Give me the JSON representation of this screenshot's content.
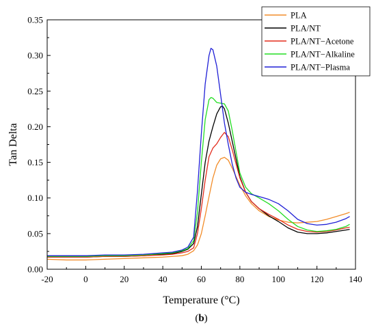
{
  "chart_data": {
    "type": "line",
    "xlabel": "Temperature (°C)",
    "ylabel": "Tan Delta",
    "caption_prefix": "(",
    "caption_bold": "b",
    "caption_suffix": ")",
    "xlim": [
      -20,
      140
    ],
    "ylim": [
      0,
      0.35
    ],
    "xticks": [
      -20,
      0,
      20,
      40,
      60,
      80,
      100,
      120,
      140
    ],
    "yticks": [
      0.0,
      0.05,
      0.1,
      0.15,
      0.2,
      0.25,
      0.3,
      0.35
    ],
    "xtick_labels": [
      "-20",
      "0",
      "20",
      "40",
      "60",
      "80",
      "100",
      "120",
      "140"
    ],
    "ytick_labels": [
      "0.00",
      "0.05",
      "0.10",
      "0.15",
      "0.20",
      "0.25",
      "0.30",
      "0.35"
    ],
    "grid": false,
    "legend_position": "top-right",
    "series": [
      {
        "name": "PLA",
        "color": "#f28c28",
        "points": [
          [
            -20,
            0.014
          ],
          [
            -10,
            0.013
          ],
          [
            0,
            0.013
          ],
          [
            10,
            0.014
          ],
          [
            20,
            0.015
          ],
          [
            30,
            0.016
          ],
          [
            40,
            0.017
          ],
          [
            45,
            0.018
          ],
          [
            50,
            0.019
          ],
          [
            53,
            0.021
          ],
          [
            56,
            0.026
          ],
          [
            58,
            0.034
          ],
          [
            60,
            0.05
          ],
          [
            62,
            0.075
          ],
          [
            64,
            0.102
          ],
          [
            66,
            0.128
          ],
          [
            68,
            0.146
          ],
          [
            70,
            0.155
          ],
          [
            72,
            0.157
          ],
          [
            74,
            0.153
          ],
          [
            76,
            0.142
          ],
          [
            78,
            0.13
          ],
          [
            80,
            0.118
          ],
          [
            83,
            0.103
          ],
          [
            86,
            0.092
          ],
          [
            90,
            0.082
          ],
          [
            95,
            0.074
          ],
          [
            100,
            0.069
          ],
          [
            105,
            0.066
          ],
          [
            110,
            0.065
          ],
          [
            115,
            0.066
          ],
          [
            120,
            0.067
          ],
          [
            125,
            0.07
          ],
          [
            130,
            0.074
          ],
          [
            135,
            0.078
          ],
          [
            137,
            0.08
          ]
        ]
      },
      {
        "name": "PLA/NT",
        "color": "#000000",
        "points": [
          [
            -20,
            0.017
          ],
          [
            -10,
            0.017
          ],
          [
            0,
            0.017
          ],
          [
            10,
            0.018
          ],
          [
            20,
            0.018
          ],
          [
            30,
            0.019
          ],
          [
            40,
            0.021
          ],
          [
            45,
            0.022
          ],
          [
            50,
            0.025
          ],
          [
            53,
            0.028
          ],
          [
            56,
            0.036
          ],
          [
            58,
            0.06
          ],
          [
            60,
            0.105
          ],
          [
            62,
            0.15
          ],
          [
            64,
            0.18
          ],
          [
            66,
            0.2
          ],
          [
            68,
            0.218
          ],
          [
            70,
            0.228
          ],
          [
            71,
            0.229
          ],
          [
            72,
            0.225
          ],
          [
            74,
            0.205
          ],
          [
            76,
            0.18
          ],
          [
            78,
            0.155
          ],
          [
            80,
            0.13
          ],
          [
            83,
            0.108
          ],
          [
            86,
            0.095
          ],
          [
            90,
            0.085
          ],
          [
            95,
            0.075
          ],
          [
            100,
            0.067
          ],
          [
            105,
            0.058
          ],
          [
            110,
            0.052
          ],
          [
            115,
            0.05
          ],
          [
            120,
            0.05
          ],
          [
            125,
            0.051
          ],
          [
            130,
            0.053
          ],
          [
            135,
            0.055
          ],
          [
            137,
            0.056
          ]
        ]
      },
      {
        "name": "PLA/NT−Acetone",
        "color": "#e32b1c",
        "points": [
          [
            -20,
            0.017
          ],
          [
            -10,
            0.017
          ],
          [
            0,
            0.017
          ],
          [
            10,
            0.018
          ],
          [
            20,
            0.018
          ],
          [
            30,
            0.019
          ],
          [
            40,
            0.02
          ],
          [
            45,
            0.021
          ],
          [
            50,
            0.023
          ],
          [
            53,
            0.025
          ],
          [
            56,
            0.03
          ],
          [
            58,
            0.05
          ],
          [
            60,
            0.085
          ],
          [
            62,
            0.125
          ],
          [
            64,
            0.158
          ],
          [
            66,
            0.17
          ],
          [
            68,
            0.176
          ],
          [
            70,
            0.185
          ],
          [
            72,
            0.192
          ],
          [
            74,
            0.186
          ],
          [
            76,
            0.168
          ],
          [
            78,
            0.148
          ],
          [
            80,
            0.128
          ],
          [
            83,
            0.108
          ],
          [
            86,
            0.095
          ],
          [
            90,
            0.085
          ],
          [
            95,
            0.077
          ],
          [
            100,
            0.07
          ],
          [
            105,
            0.062
          ],
          [
            110,
            0.056
          ],
          [
            115,
            0.053
          ],
          [
            120,
            0.052
          ],
          [
            125,
            0.053
          ],
          [
            130,
            0.055
          ],
          [
            135,
            0.058
          ],
          [
            137,
            0.059
          ]
        ]
      },
      {
        "name": "PLA/NT−Alkaline",
        "color": "#22dd22",
        "points": [
          [
            -20,
            0.018
          ],
          [
            -10,
            0.018
          ],
          [
            0,
            0.018
          ],
          [
            10,
            0.019
          ],
          [
            20,
            0.019
          ],
          [
            30,
            0.02
          ],
          [
            40,
            0.022
          ],
          [
            45,
            0.023
          ],
          [
            50,
            0.026
          ],
          [
            53,
            0.029
          ],
          [
            56,
            0.04
          ],
          [
            58,
            0.08
          ],
          [
            60,
            0.15
          ],
          [
            62,
            0.21
          ],
          [
            64,
            0.238
          ],
          [
            65,
            0.241
          ],
          [
            66,
            0.24
          ],
          [
            68,
            0.234
          ],
          [
            70,
            0.233
          ],
          [
            72,
            0.232
          ],
          [
            74,
            0.222
          ],
          [
            76,
            0.195
          ],
          [
            78,
            0.165
          ],
          [
            80,
            0.135
          ],
          [
            83,
            0.115
          ],
          [
            86,
            0.106
          ],
          [
            90,
            0.1
          ],
          [
            95,
            0.092
          ],
          [
            100,
            0.082
          ],
          [
            105,
            0.07
          ],
          [
            110,
            0.06
          ],
          [
            115,
            0.055
          ],
          [
            120,
            0.053
          ],
          [
            125,
            0.054
          ],
          [
            130,
            0.056
          ],
          [
            135,
            0.06
          ],
          [
            137,
            0.063
          ]
        ]
      },
      {
        "name": "PLA/NT−Plasma",
        "color": "#1f1fd6",
        "points": [
          [
            -20,
            0.019
          ],
          [
            -10,
            0.019
          ],
          [
            0,
            0.019
          ],
          [
            10,
            0.02
          ],
          [
            20,
            0.02
          ],
          [
            30,
            0.021
          ],
          [
            40,
            0.023
          ],
          [
            45,
            0.024
          ],
          [
            50,
            0.027
          ],
          [
            53,
            0.031
          ],
          [
            56,
            0.045
          ],
          [
            58,
            0.11
          ],
          [
            60,
            0.19
          ],
          [
            62,
            0.26
          ],
          [
            64,
            0.3
          ],
          [
            65,
            0.31
          ],
          [
            66,
            0.308
          ],
          [
            68,
            0.285
          ],
          [
            70,
            0.245
          ],
          [
            72,
            0.205
          ],
          [
            74,
            0.175
          ],
          [
            76,
            0.148
          ],
          [
            78,
            0.128
          ],
          [
            80,
            0.115
          ],
          [
            83,
            0.108
          ],
          [
            86,
            0.105
          ],
          [
            90,
            0.102
          ],
          [
            95,
            0.098
          ],
          [
            100,
            0.092
          ],
          [
            105,
            0.082
          ],
          [
            110,
            0.07
          ],
          [
            115,
            0.064
          ],
          [
            120,
            0.062
          ],
          [
            125,
            0.063
          ],
          [
            130,
            0.066
          ],
          [
            135,
            0.071
          ],
          [
            137,
            0.074
          ]
        ]
      }
    ]
  }
}
